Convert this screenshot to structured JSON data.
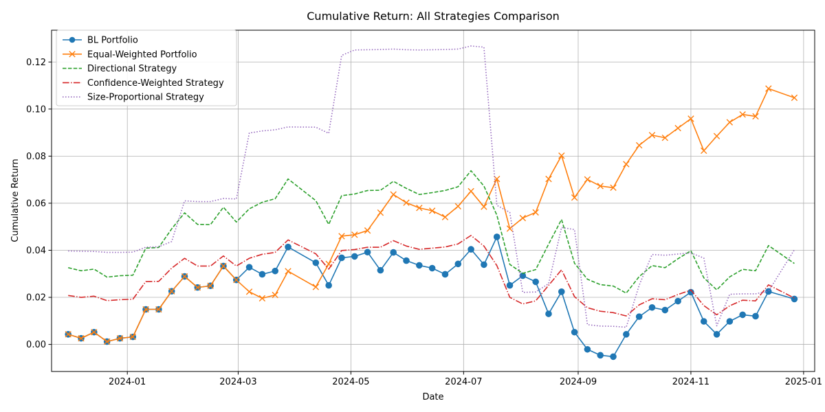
{
  "chart_data": {
    "type": "line",
    "title": "Cumulative Return: All Strategies Comparison",
    "xlabel": "Date",
    "ylabel": "Cumulative Return",
    "grid": true,
    "legend_position": "top-left",
    "xlim": [
      "2023-11-21",
      "2025-01-07"
    ],
    "ylim": [
      -0.0115,
      0.1335
    ],
    "x_ticks": [
      "2024-01",
      "2024-03",
      "2024-05",
      "2024-07",
      "2024-09",
      "2024-11",
      "2025-01"
    ],
    "x_tick_dates": [
      "2024-01-01",
      "2024-03-01",
      "2024-05-01",
      "2024-07-01",
      "2024-09-01",
      "2024-11-01",
      "2025-01-01"
    ],
    "y_ticks": [
      "0.00",
      "0.02",
      "0.04",
      "0.06",
      "0.08",
      "0.10",
      "0.12"
    ],
    "y_tick_values": [
      0.0,
      0.02,
      0.04,
      0.06,
      0.08,
      0.1,
      0.12
    ],
    "x": [
      "2023-11-30",
      "2023-12-07",
      "2023-12-14",
      "2023-12-21",
      "2023-12-28",
      "2024-01-04",
      "2024-01-11",
      "2024-01-18",
      "2024-01-25",
      "2024-02-01",
      "2024-02-08",
      "2024-02-15",
      "2024-02-22",
      "2024-02-29",
      "2024-03-07",
      "2024-03-14",
      "2024-03-21",
      "2024-03-28",
      "2024-04-12",
      "2024-04-19",
      "2024-04-26",
      "2024-05-03",
      "2024-05-10",
      "2024-05-17",
      "2024-05-24",
      "2024-05-31",
      "2024-06-07",
      "2024-06-14",
      "2024-06-21",
      "2024-06-28",
      "2024-07-05",
      "2024-07-12",
      "2024-07-19",
      "2024-07-26",
      "2024-08-02",
      "2024-08-09",
      "2024-08-16",
      "2024-08-23",
      "2024-08-30",
      "2024-09-06",
      "2024-09-13",
      "2024-09-20",
      "2024-09-27",
      "2024-10-04",
      "2024-10-11",
      "2024-10-18",
      "2024-10-25",
      "2024-11-01",
      "2024-11-08",
      "2024-11-15",
      "2024-11-22",
      "2024-11-29",
      "2024-12-06",
      "2024-12-13",
      "2024-12-27"
    ],
    "series": [
      {
        "name": "BL Portfolio",
        "color": "#1f77b4",
        "style": "solid",
        "marker": "circle",
        "values": [
          0.0043,
          0.0026,
          0.0052,
          0.0012,
          0.0026,
          0.0032,
          0.0149,
          0.0149,
          0.0226,
          0.0289,
          0.0242,
          0.0249,
          0.0333,
          0.0274,
          0.0328,
          0.0298,
          0.0312,
          0.0414,
          0.0347,
          0.0251,
          0.0368,
          0.0374,
          0.0392,
          0.0315,
          0.0391,
          0.0356,
          0.0336,
          0.0324,
          0.0298,
          0.0342,
          0.0404,
          0.0339,
          0.0457,
          0.0251,
          0.0292,
          0.0266,
          0.013,
          0.0224,
          0.0052,
          -0.0021,
          -0.0046,
          -0.0052,
          0.0043,
          0.0118,
          0.0157,
          0.0146,
          0.0184,
          0.0222,
          0.0098,
          0.0043,
          0.0098,
          0.0126,
          0.012,
          0.0225,
          0.0193
        ]
      },
      {
        "name": "Equal-Weighted Portfolio",
        "color": "#ff7f0e",
        "style": "solid",
        "marker": "x",
        "values": [
          0.0043,
          0.0026,
          0.0052,
          0.0012,
          0.0026,
          0.0032,
          0.0149,
          0.0149,
          0.0226,
          0.0289,
          0.0242,
          0.0249,
          0.0333,
          0.0274,
          0.0224,
          0.0196,
          0.021,
          0.0311,
          0.0244,
          0.0342,
          0.046,
          0.0466,
          0.0484,
          0.056,
          0.0637,
          0.0602,
          0.058,
          0.0568,
          0.0541,
          0.0587,
          0.0651,
          0.0585,
          0.0703,
          0.0492,
          0.0537,
          0.0561,
          0.0703,
          0.0802,
          0.0624,
          0.0701,
          0.0673,
          0.0666,
          0.0766,
          0.0846,
          0.0889,
          0.0878,
          0.0919,
          0.0959,
          0.0823,
          0.0885,
          0.0944,
          0.0977,
          0.0969,
          0.1087,
          0.1048
        ]
      },
      {
        "name": "Directional Strategy",
        "color": "#2ca02c",
        "style": "dashed",
        "marker": "none",
        "values": [
          0.0326,
          0.0313,
          0.032,
          0.0286,
          0.0292,
          0.0294,
          0.0409,
          0.0412,
          0.0491,
          0.0559,
          0.051,
          0.0509,
          0.0583,
          0.052,
          0.0576,
          0.0604,
          0.0619,
          0.0703,
          0.0611,
          0.051,
          0.0632,
          0.0639,
          0.0654,
          0.0655,
          0.0693,
          0.0663,
          0.0637,
          0.0645,
          0.0654,
          0.067,
          0.0738,
          0.0673,
          0.0549,
          0.034,
          0.0302,
          0.0318,
          0.0426,
          0.0531,
          0.0345,
          0.0277,
          0.0254,
          0.0248,
          0.0218,
          0.0288,
          0.0335,
          0.0326,
          0.0364,
          0.0398,
          0.0283,
          0.0232,
          0.0287,
          0.0319,
          0.0313,
          0.042,
          0.0344
        ]
      },
      {
        "name": "Confidence-Weighted Strategy",
        "color": "#d62728",
        "style": "dashdot",
        "marker": "none",
        "values": [
          0.0208,
          0.02,
          0.0205,
          0.0186,
          0.019,
          0.0192,
          0.0267,
          0.0268,
          0.0324,
          0.0366,
          0.0333,
          0.0333,
          0.0376,
          0.0333,
          0.0366,
          0.0383,
          0.0391,
          0.0444,
          0.0385,
          0.032,
          0.0399,
          0.0403,
          0.0413,
          0.0413,
          0.0441,
          0.0418,
          0.0404,
          0.0409,
          0.0414,
          0.0427,
          0.0463,
          0.0418,
          0.0335,
          0.02,
          0.0172,
          0.0185,
          0.0251,
          0.0317,
          0.0203,
          0.0156,
          0.0141,
          0.0135,
          0.0121,
          0.0168,
          0.0194,
          0.019,
          0.0212,
          0.0231,
          0.0165,
          0.0126,
          0.0164,
          0.0188,
          0.0185,
          0.0253,
          0.0197
        ]
      },
      {
        "name": "Size-Proportional Strategy",
        "color": "#9467bd",
        "style": "dotted",
        "marker": "none",
        "values": [
          0.0397,
          0.0396,
          0.0395,
          0.0391,
          0.0391,
          0.0392,
          0.0413,
          0.0415,
          0.0437,
          0.061,
          0.0607,
          0.0607,
          0.062,
          0.0618,
          0.0898,
          0.0907,
          0.0912,
          0.0924,
          0.0923,
          0.0897,
          0.1228,
          0.1251,
          0.1252,
          0.1253,
          0.1255,
          0.1252,
          0.1251,
          0.1252,
          0.1253,
          0.1255,
          0.1268,
          0.1263,
          0.0591,
          0.0561,
          0.0221,
          0.0223,
          0.0258,
          0.0497,
          0.0488,
          0.0084,
          0.0078,
          0.0077,
          0.0073,
          0.0251,
          0.0382,
          0.0379,
          0.0384,
          0.0389,
          0.0367,
          0.0079,
          0.0213,
          0.0215,
          0.0215,
          0.0226,
          0.0402
        ]
      }
    ]
  }
}
